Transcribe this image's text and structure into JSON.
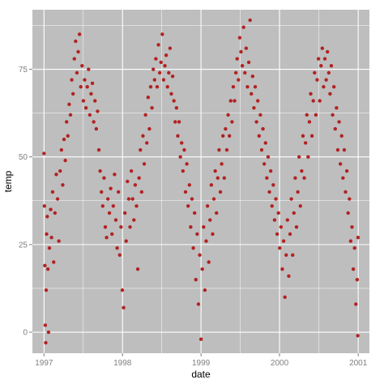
{
  "chart_data": {
    "type": "scatter",
    "title": "",
    "xlabel": "date",
    "ylabel": "temp",
    "x_ticks": [
      "1997",
      "1998",
      "1999",
      "2000",
      "2001"
    ],
    "y_ticks": [
      0,
      25,
      50,
      75
    ],
    "xlim": [
      "1996-11-08",
      "2001-02-22"
    ],
    "ylim": [
      -6,
      92
    ],
    "grid": true,
    "legend": "none",
    "colors": {
      "panel": "#bebebe",
      "grid": "#ffffff",
      "point": "#b22222",
      "tick_text": "#7f7f7f"
    },
    "series": [
      {
        "points": [
          {
            "x": "1997-01-01",
            "y": 51
          },
          {
            "x": "1997-01-03",
            "y": 36
          },
          {
            "x": "1997-01-05",
            "y": 19
          },
          {
            "x": "1997-01-07",
            "y": 2
          },
          {
            "x": "1997-01-09",
            "y": -3
          },
          {
            "x": "1997-01-11",
            "y": 12
          },
          {
            "x": "1997-01-13",
            "y": 28
          },
          {
            "x": "1997-01-16",
            "y": 33
          },
          {
            "x": "1997-01-19",
            "y": 18
          },
          {
            "x": "1997-01-22",
            "y": 0
          },
          {
            "x": "1997-01-26",
            "y": 24
          },
          {
            "x": "1997-02-01",
            "y": 35
          },
          {
            "x": "1997-02-05",
            "y": 27
          },
          {
            "x": "1997-02-10",
            "y": 40
          },
          {
            "x": "1997-02-15",
            "y": 20
          },
          {
            "x": "1997-02-21",
            "y": 34
          },
          {
            "x": "1997-02-27",
            "y": 45
          },
          {
            "x": "1997-03-05",
            "y": 38
          },
          {
            "x": "1997-03-11",
            "y": 26
          },
          {
            "x": "1997-03-17",
            "y": 46
          },
          {
            "x": "1997-03-23",
            "y": 52
          },
          {
            "x": "1997-03-29",
            "y": 42
          },
          {
            "x": "1997-04-04",
            "y": 55
          },
          {
            "x": "1997-04-10",
            "y": 49
          },
          {
            "x": "1997-04-16",
            "y": 60
          },
          {
            "x": "1997-04-22",
            "y": 56
          },
          {
            "x": "1997-04-28",
            "y": 65
          },
          {
            "x": "1997-05-04",
            "y": 62
          },
          {
            "x": "1997-05-10",
            "y": 72
          },
          {
            "x": "1997-05-16",
            "y": 68
          },
          {
            "x": "1997-05-22",
            "y": 78
          },
          {
            "x": "1997-05-28",
            "y": 83
          },
          {
            "x": "1997-06-03",
            "y": 74
          },
          {
            "x": "1997-06-09",
            "y": 80
          },
          {
            "x": "1997-06-15",
            "y": 85
          },
          {
            "x": "1997-06-21",
            "y": 70
          },
          {
            "x": "1997-06-27",
            "y": 76
          },
          {
            "x": "1997-07-03",
            "y": 66
          },
          {
            "x": "1997-07-09",
            "y": 72
          },
          {
            "x": "1997-07-15",
            "y": 64
          },
          {
            "x": "1997-07-21",
            "y": 70
          },
          {
            "x": "1997-07-27",
            "y": 75
          },
          {
            "x": "1997-08-02",
            "y": 62
          },
          {
            "x": "1997-08-08",
            "y": 68
          },
          {
            "x": "1997-08-14",
            "y": 71
          },
          {
            "x": "1997-08-20",
            "y": 60
          },
          {
            "x": "1997-08-26",
            "y": 66
          },
          {
            "x": "1997-09-01",
            "y": 58
          },
          {
            "x": "1997-09-07",
            "y": 63
          },
          {
            "x": "1997-09-13",
            "y": 52
          },
          {
            "x": "1997-09-19",
            "y": 46
          },
          {
            "x": "1997-09-25",
            "y": 40
          },
          {
            "x": "1997-10-01",
            "y": 36
          },
          {
            "x": "1997-10-07",
            "y": 44
          },
          {
            "x": "1997-10-13",
            "y": 30
          },
          {
            "x": "1997-10-19",
            "y": 27
          },
          {
            "x": "1997-10-25",
            "y": 38
          },
          {
            "x": "1997-11-01",
            "y": 34
          },
          {
            "x": "1997-11-07",
            "y": 41
          },
          {
            "x": "1997-11-13",
            "y": 28
          },
          {
            "x": "1997-11-19",
            "y": 36
          },
          {
            "x": "1997-11-25",
            "y": 45
          },
          {
            "x": "1997-12-01",
            "y": 32
          },
          {
            "x": "1997-12-07",
            "y": 24
          },
          {
            "x": "1997-12-13",
            "y": 40
          },
          {
            "x": "1997-12-19",
            "y": 22
          },
          {
            "x": "1997-12-25",
            "y": 30
          },
          {
            "x": "1997-12-31",
            "y": 12
          },
          {
            "x": "1998-01-06",
            "y": 7
          },
          {
            "x": "1998-01-12",
            "y": 34
          },
          {
            "x": "1998-01-18",
            "y": 26
          },
          {
            "x": "1998-01-24",
            "y": 43
          },
          {
            "x": "1998-01-30",
            "y": 38
          },
          {
            "x": "1998-02-05",
            "y": 30
          },
          {
            "x": "1998-02-11",
            "y": 46
          },
          {
            "x": "1998-02-17",
            "y": 38
          },
          {
            "x": "1998-02-23",
            "y": 32
          },
          {
            "x": "1998-03-01",
            "y": 42
          },
          {
            "x": "1998-03-07",
            "y": 36
          },
          {
            "x": "1998-03-13",
            "y": 18
          },
          {
            "x": "1998-03-19",
            "y": 44
          },
          {
            "x": "1998-03-25",
            "y": 52
          },
          {
            "x": "1998-03-31",
            "y": 40
          },
          {
            "x": "1998-04-06",
            "y": 56
          },
          {
            "x": "1998-04-12",
            "y": 48
          },
          {
            "x": "1998-04-18",
            "y": 62
          },
          {
            "x": "1998-04-24",
            "y": 54
          },
          {
            "x": "1998-04-30",
            "y": 67
          },
          {
            "x": "1998-05-06",
            "y": 58
          },
          {
            "x": "1998-05-12",
            "y": 70
          },
          {
            "x": "1998-05-18",
            "y": 64
          },
          {
            "x": "1998-05-24",
            "y": 75
          },
          {
            "x": "1998-05-30",
            "y": 72
          },
          {
            "x": "1998-06-05",
            "y": 78
          },
          {
            "x": "1998-06-11",
            "y": 70
          },
          {
            "x": "1998-06-17",
            "y": 82
          },
          {
            "x": "1998-06-23",
            "y": 74
          },
          {
            "x": "1998-06-29",
            "y": 77
          },
          {
            "x": "1998-07-05",
            "y": 85
          },
          {
            "x": "1998-07-11",
            "y": 72
          },
          {
            "x": "1998-07-17",
            "y": 76
          },
          {
            "x": "1998-07-23",
            "y": 79
          },
          {
            "x": "1998-07-29",
            "y": 70
          },
          {
            "x": "1998-08-04",
            "y": 74
          },
          {
            "x": "1998-08-10",
            "y": 81
          },
          {
            "x": "1998-08-16",
            "y": 68
          },
          {
            "x": "1998-08-22",
            "y": 73
          },
          {
            "x": "1998-08-28",
            "y": 66
          },
          {
            "x": "1998-09-03",
            "y": 60
          },
          {
            "x": "1998-09-09",
            "y": 64
          },
          {
            "x": "1998-09-15",
            "y": 56
          },
          {
            "x": "1998-09-21",
            "y": 60
          },
          {
            "x": "1998-09-27",
            "y": 50
          },
          {
            "x": "1998-10-03",
            "y": 54
          },
          {
            "x": "1998-10-09",
            "y": 46
          },
          {
            "x": "1998-10-15",
            "y": 52
          },
          {
            "x": "1998-10-21",
            "y": 40
          },
          {
            "x": "1998-10-27",
            "y": 48
          },
          {
            "x": "1998-11-02",
            "y": 36
          },
          {
            "x": "1998-11-08",
            "y": 42
          },
          {
            "x": "1998-11-14",
            "y": 30
          },
          {
            "x": "1998-11-20",
            "y": 38
          },
          {
            "x": "1998-11-26",
            "y": 24
          },
          {
            "x": "1998-12-02",
            "y": 34
          },
          {
            "x": "1998-12-08",
            "y": 15
          },
          {
            "x": "1998-12-14",
            "y": 28
          },
          {
            "x": "1998-12-20",
            "y": 8
          },
          {
            "x": "1998-12-26",
            "y": 22
          },
          {
            "x": "1999-01-01",
            "y": -2
          },
          {
            "x": "1999-01-07",
            "y": 18
          },
          {
            "x": "1999-01-13",
            "y": 30
          },
          {
            "x": "1999-01-19",
            "y": 12
          },
          {
            "x": "1999-01-25",
            "y": 26
          },
          {
            "x": "1999-01-31",
            "y": 36
          },
          {
            "x": "1999-02-06",
            "y": 20
          },
          {
            "x": "1999-02-12",
            "y": 32
          },
          {
            "x": "1999-02-18",
            "y": 42
          },
          {
            "x": "1999-02-24",
            "y": 28
          },
          {
            "x": "1999-03-02",
            "y": 38
          },
          {
            "x": "1999-03-08",
            "y": 46
          },
          {
            "x": "1999-03-14",
            "y": 34
          },
          {
            "x": "1999-03-20",
            "y": 44
          },
          {
            "x": "1999-03-26",
            "y": 52
          },
          {
            "x": "1999-04-01",
            "y": 40
          },
          {
            "x": "1999-04-07",
            "y": 48
          },
          {
            "x": "1999-04-13",
            "y": 56
          },
          {
            "x": "1999-04-19",
            "y": 44
          },
          {
            "x": "1999-04-25",
            "y": 58
          },
          {
            "x": "1999-05-01",
            "y": 52
          },
          {
            "x": "1999-05-07",
            "y": 62
          },
          {
            "x": "1999-05-13",
            "y": 56
          },
          {
            "x": "1999-05-19",
            "y": 66
          },
          {
            "x": "1999-05-25",
            "y": 60
          },
          {
            "x": "1999-05-31",
            "y": 70
          },
          {
            "x": "1999-06-06",
            "y": 66
          },
          {
            "x": "1999-06-12",
            "y": 74
          },
          {
            "x": "1999-06-18",
            "y": 78
          },
          {
            "x": "1999-06-24",
            "y": 72
          },
          {
            "x": "1999-06-30",
            "y": 84
          },
          {
            "x": "1999-07-06",
            "y": 80
          },
          {
            "x": "1999-07-12",
            "y": 76
          },
          {
            "x": "1999-07-18",
            "y": 87
          },
          {
            "x": "1999-07-24",
            "y": 74
          },
          {
            "x": "1999-07-30",
            "y": 81
          },
          {
            "x": "1999-08-05",
            "y": 70
          },
          {
            "x": "1999-08-11",
            "y": 77
          },
          {
            "x": "1999-08-17",
            "y": 89
          },
          {
            "x": "1999-08-23",
            "y": 68
          },
          {
            "x": "1999-08-29",
            "y": 73
          },
          {
            "x": "1999-09-04",
            "y": 64
          },
          {
            "x": "1999-09-10",
            "y": 70
          },
          {
            "x": "1999-09-16",
            "y": 60
          },
          {
            "x": "1999-09-22",
            "y": 66
          },
          {
            "x": "1999-09-28",
            "y": 56
          },
          {
            "x": "1999-10-04",
            "y": 62
          },
          {
            "x": "1999-10-10",
            "y": 52
          },
          {
            "x": "1999-10-16",
            "y": 58
          },
          {
            "x": "1999-10-22",
            "y": 48
          },
          {
            "x": "1999-10-28",
            "y": 54
          },
          {
            "x": "1999-11-03",
            "y": 44
          },
          {
            "x": "1999-11-09",
            "y": 50
          },
          {
            "x": "1999-11-15",
            "y": 40
          },
          {
            "x": "1999-11-21",
            "y": 46
          },
          {
            "x": "1999-11-27",
            "y": 36
          },
          {
            "x": "1999-12-03",
            "y": 42
          },
          {
            "x": "1999-12-09",
            "y": 32
          },
          {
            "x": "1999-12-15",
            "y": 38
          },
          {
            "x": "1999-12-21",
            "y": 28
          },
          {
            "x": "1999-12-27",
            "y": 34
          },
          {
            "x": "2000-01-02",
            "y": 24
          },
          {
            "x": "2000-01-08",
            "y": 30
          },
          {
            "x": "2000-01-14",
            "y": 18
          },
          {
            "x": "2000-01-20",
            "y": 26
          },
          {
            "x": "2000-01-26",
            "y": 10
          },
          {
            "x": "2000-02-01",
            "y": 22
          },
          {
            "x": "2000-02-07",
            "y": 32
          },
          {
            "x": "2000-02-13",
            "y": 16
          },
          {
            "x": "2000-02-19",
            "y": 28
          },
          {
            "x": "2000-02-25",
            "y": 38
          },
          {
            "x": "2000-03-02",
            "y": 22
          },
          {
            "x": "2000-03-08",
            "y": 34
          },
          {
            "x": "2000-03-14",
            "y": 44
          },
          {
            "x": "2000-03-20",
            "y": 30
          },
          {
            "x": "2000-03-26",
            "y": 40
          },
          {
            "x": "2000-04-01",
            "y": 50
          },
          {
            "x": "2000-04-07",
            "y": 36
          },
          {
            "x": "2000-04-13",
            "y": 46
          },
          {
            "x": "2000-04-19",
            "y": 56
          },
          {
            "x": "2000-04-25",
            "y": 44
          },
          {
            "x": "2000-05-01",
            "y": 54
          },
          {
            "x": "2000-05-07",
            "y": 62
          },
          {
            "x": "2000-05-13",
            "y": 50
          },
          {
            "x": "2000-05-19",
            "y": 60
          },
          {
            "x": "2000-05-25",
            "y": 68
          },
          {
            "x": "2000-05-31",
            "y": 56
          },
          {
            "x": "2000-06-06",
            "y": 66
          },
          {
            "x": "2000-06-12",
            "y": 74
          },
          {
            "x": "2000-06-18",
            "y": 62
          },
          {
            "x": "2000-06-24",
            "y": 72
          },
          {
            "x": "2000-06-30",
            "y": 78
          },
          {
            "x": "2000-07-06",
            "y": 66
          },
          {
            "x": "2000-07-12",
            "y": 76
          },
          {
            "x": "2000-07-18",
            "y": 81
          },
          {
            "x": "2000-07-24",
            "y": 70
          },
          {
            "x": "2000-07-30",
            "y": 78
          },
          {
            "x": "2000-08-05",
            "y": 72
          },
          {
            "x": "2000-08-11",
            "y": 80
          },
          {
            "x": "2000-08-17",
            "y": 74
          },
          {
            "x": "2000-08-23",
            "y": 68
          },
          {
            "x": "2000-08-29",
            "y": 76
          },
          {
            "x": "2000-09-04",
            "y": 62
          },
          {
            "x": "2000-09-10",
            "y": 70
          },
          {
            "x": "2000-09-16",
            "y": 58
          },
          {
            "x": "2000-09-22",
            "y": 64
          },
          {
            "x": "2000-09-28",
            "y": 52
          },
          {
            "x": "2000-10-04",
            "y": 60
          },
          {
            "x": "2000-10-10",
            "y": 48
          },
          {
            "x": "2000-10-16",
            "y": 56
          },
          {
            "x": "2000-10-22",
            "y": 44
          },
          {
            "x": "2000-10-28",
            "y": 52
          },
          {
            "x": "2000-11-03",
            "y": 40
          },
          {
            "x": "2000-11-09",
            "y": 46
          },
          {
            "x": "2000-11-15",
            "y": 34
          },
          {
            "x": "2000-11-21",
            "y": 38
          },
          {
            "x": "2000-11-27",
            "y": 26
          },
          {
            "x": "2000-12-03",
            "y": 30
          },
          {
            "x": "2000-12-09",
            "y": 18
          },
          {
            "x": "2000-12-15",
            "y": 24
          },
          {
            "x": "2000-12-21",
            "y": 8
          },
          {
            "x": "2000-12-27",
            "y": 15
          },
          {
            "x": "2000-12-30",
            "y": -1
          },
          {
            "x": "2000-12-31",
            "y": 27
          }
        ]
      }
    ]
  }
}
